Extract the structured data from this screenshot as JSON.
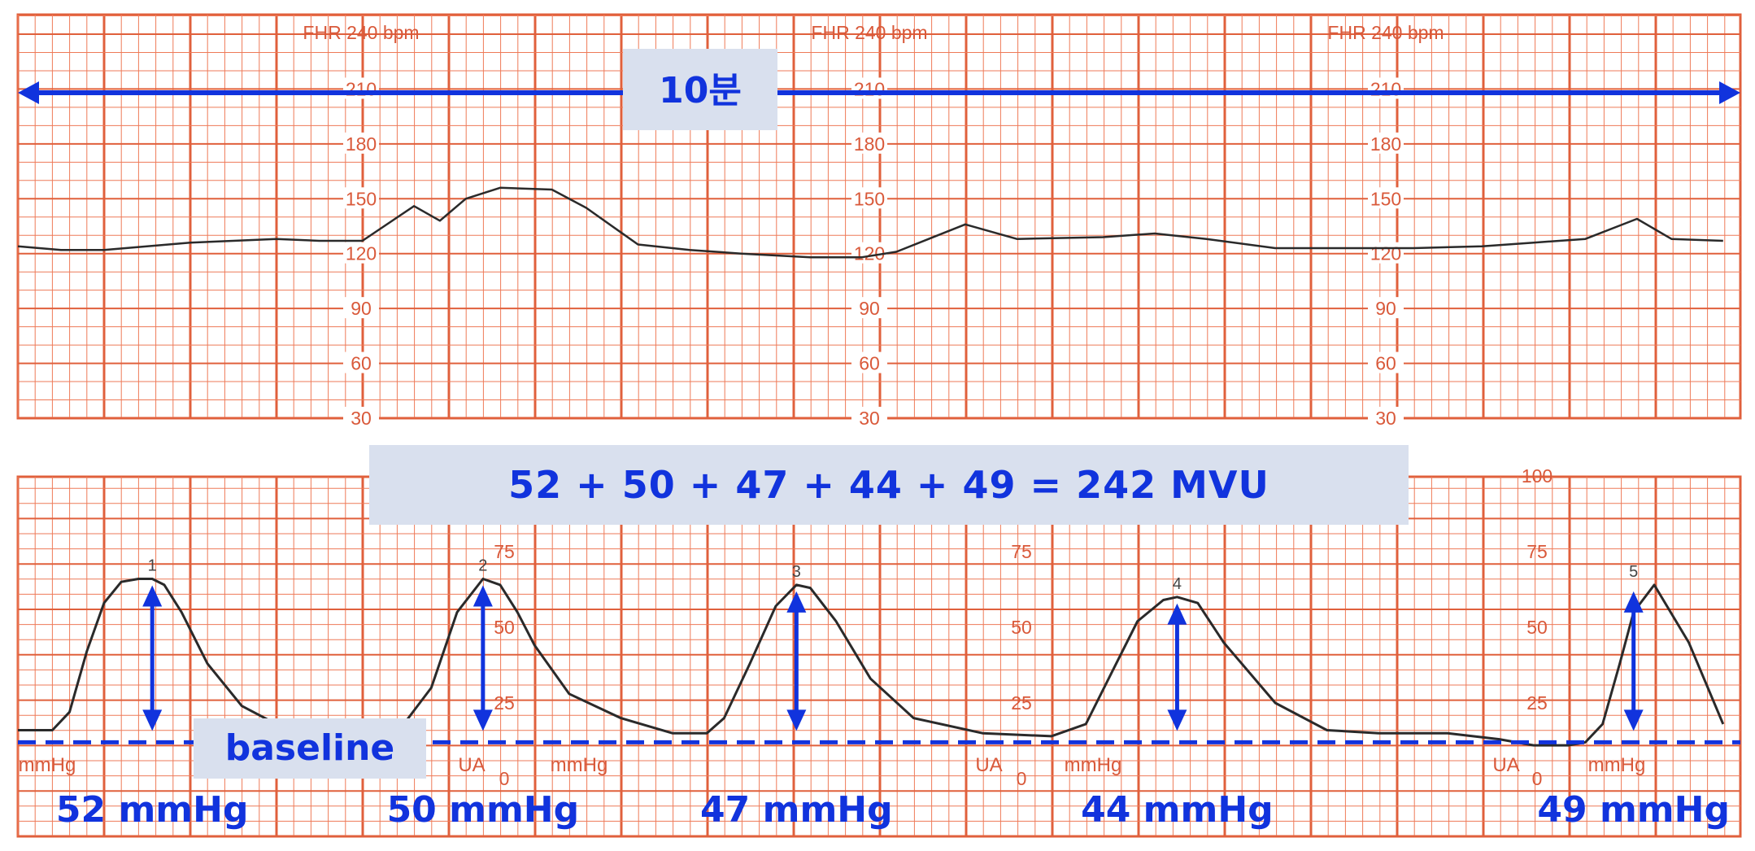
{
  "colors": {
    "grid": "#ee7a58",
    "grid_major": "#e0603c",
    "frame": "#e0603c",
    "label": "#d9593a",
    "trace": "#2a2a2a",
    "annotation": "#1133dd",
    "callout_bg": "#d9e0ee"
  },
  "chart_data": [
    {
      "type": "line",
      "name": "fhr",
      "panel_label": "FHR 240 bpm",
      "y_ticks": [
        210,
        180,
        150,
        120,
        90,
        60,
        30
      ],
      "ylim": [
        30,
        240
      ],
      "xlim": [
        0,
        10
      ],
      "x_unit": "minutes",
      "duration_label": "10분",
      "x": [
        0,
        0.25,
        0.5,
        0.75,
        1.0,
        1.25,
        1.5,
        1.75,
        2.0,
        2.3,
        2.45,
        2.6,
        2.8,
        3.1,
        3.3,
        3.6,
        3.9,
        4.2,
        4.6,
        4.9,
        5.1,
        5.5,
        5.8,
        6.3,
        6.6,
        6.9,
        7.3,
        7.7,
        8.1,
        8.5,
        8.8,
        9.1,
        9.4,
        9.6,
        9.9
      ],
      "values": [
        124,
        122,
        122,
        124,
        126,
        127,
        128,
        127,
        127,
        146,
        138,
        150,
        156,
        155,
        145,
        125,
        122,
        120,
        118,
        118,
        121,
        136,
        128,
        129,
        131,
        128,
        123,
        123,
        123,
        124,
        126,
        128,
        139,
        128,
        127
      ]
    },
    {
      "type": "line",
      "name": "uterine-activity",
      "y_ticks": [
        100,
        75,
        50,
        25,
        0
      ],
      "ylim": [
        0,
        100
      ],
      "xlim": [
        0,
        10
      ],
      "x_unit": "minutes",
      "tick_label": "UA",
      "unit_label": "mmHg",
      "baseline_value": 12,
      "baseline_label": "baseline",
      "sum_formula": "52 + 50 + 47 + 44 + 49 = 242 MVU",
      "x": [
        0,
        0.2,
        0.3,
        0.4,
        0.5,
        0.6,
        0.7,
        0.78,
        0.85,
        0.95,
        1.1,
        1.3,
        1.5,
        1.8,
        2.2,
        2.4,
        2.55,
        2.7,
        2.8,
        2.9,
        3.0,
        3.2,
        3.5,
        3.8,
        4.0,
        4.1,
        4.25,
        4.4,
        4.52,
        4.6,
        4.75,
        4.95,
        5.2,
        5.6,
        6.0,
        6.2,
        6.35,
        6.5,
        6.65,
        6.73,
        6.85,
        7.0,
        7.3,
        7.6,
        7.9,
        8.3,
        8.6,
        8.8,
        8.9,
        9.0,
        9.1,
        9.2,
        9.3,
        9.38,
        9.5,
        9.7,
        9.9
      ],
      "values": [
        16,
        16,
        22,
        42,
        58,
        65,
        66,
        66,
        64,
        55,
        38,
        24,
        18,
        16,
        15,
        30,
        55,
        66,
        64,
        55,
        44,
        28,
        20,
        15,
        15,
        20,
        38,
        57,
        64,
        63,
        52,
        33,
        20,
        15,
        14,
        18,
        35,
        52,
        59,
        60,
        58,
        45,
        25,
        16,
        15,
        15,
        13,
        11,
        11,
        11,
        12,
        18,
        38,
        55,
        64,
        45,
        18
      ],
      "peaks": [
        {
          "label": "1",
          "x": 0.78,
          "value": 66,
          "amplitude": "52 mmHg"
        },
        {
          "label": "2",
          "x": 2.7,
          "value": 66,
          "amplitude": "50 mmHg"
        },
        {
          "label": "3",
          "x": 4.52,
          "value": 64,
          "amplitude": "47 mmHg"
        },
        {
          "label": "4",
          "x": 6.73,
          "value": 60,
          "amplitude": "44 mmHg"
        },
        {
          "label": "5",
          "x": 9.38,
          "value": 64,
          "amplitude": "49 mmHg"
        }
      ]
    }
  ]
}
